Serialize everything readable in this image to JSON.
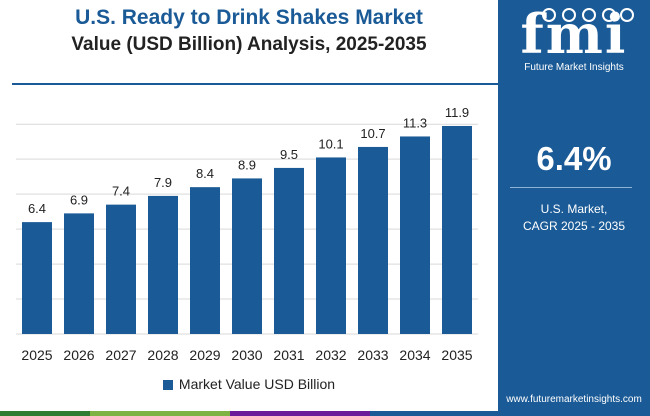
{
  "title": "U.S. Ready to Drink Shakes Market",
  "subtitle": "Value (USD Billion) Analysis, 2025-2035",
  "chart_data": {
    "type": "bar",
    "categories": [
      "2025",
      "2026",
      "2027",
      "2028",
      "2029",
      "2030",
      "2031",
      "2032",
      "2033",
      "2034",
      "2035"
    ],
    "series": [
      {
        "name": "Market Value USD Billion",
        "values": [
          6.4,
          6.9,
          7.4,
          7.9,
          8.4,
          8.9,
          9.5,
          10.1,
          10.7,
          11.3,
          11.9
        ]
      }
    ],
    "value_labels": [
      "6.4",
      "6.9",
      "7.4",
      "7.9",
      "8.4",
      "8.9",
      "9.5",
      "10.1",
      "10.7",
      "11.3",
      "11.9"
    ],
    "ylim": [
      0,
      13.5
    ],
    "grid": true,
    "legend": "bottom-center",
    "xlabel": "",
    "ylabel": ""
  },
  "legend": {
    "label": "Market Value USD Billion"
  },
  "side_panel": {
    "logo_mark": "fmi",
    "logo_text": "Future Market Insights",
    "cagr_value": "6.4%",
    "cagr_label_line1": "U.S. Market,",
    "cagr_label_line2": "CAGR 2025 - 2035",
    "website": "www.futuremarketinsights.com"
  },
  "colors": {
    "brand": "#1a5a96",
    "bar": "#1a5a96",
    "gridline": "#d9d9d9",
    "bottom_bar": [
      "#2e7d32",
      "#7cb342",
      "#6a1b9a",
      "#1a5a96"
    ]
  }
}
